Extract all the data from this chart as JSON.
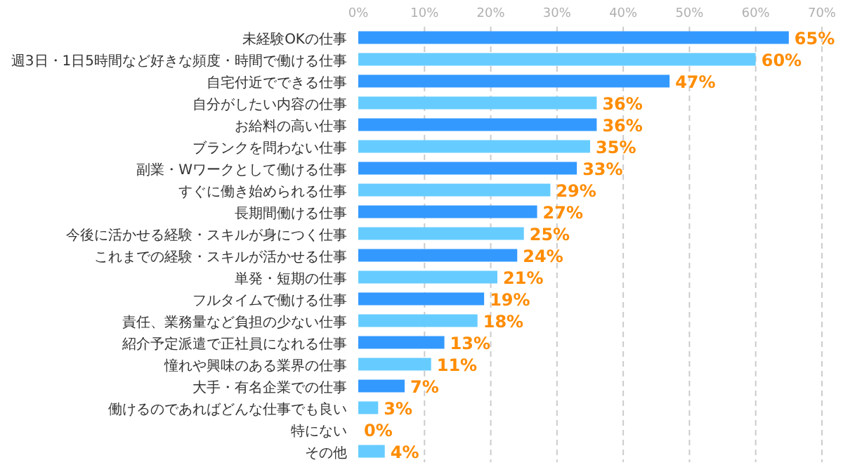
{
  "chart_data": {
    "type": "bar",
    "orientation": "horizontal",
    "categories": [
      "未経験OKの仕事",
      "週3日・1日5時間など好きな頻度・時間で働ける仕事",
      "自宅付近でできる仕事",
      "自分がしたい内容の仕事",
      "お給料の高い仕事",
      "ブランクを問わない仕事",
      "副業・Wワークとして働ける仕事",
      "すぐに働き始められる仕事",
      "長期間働ける仕事",
      "今後に活かせる経験・スキルが身につく仕事",
      "これまでの経験・スキルが活かせる仕事",
      "単発・短期の仕事",
      "フルタイムで働ける仕事",
      "責任、業務量など負担の少ない仕事",
      "紹介予定派遣で正社員になれる仕事",
      "憧れや興味のある業界の仕事",
      "大手・有名企業での仕事",
      "働けるのであればどんな仕事でも良い",
      "特にない",
      "その他"
    ],
    "values": [
      65,
      60,
      47,
      36,
      36,
      35,
      33,
      29,
      27,
      25,
      24,
      21,
      19,
      18,
      13,
      11,
      7,
      3,
      0,
      4
    ],
    "value_labels": [
      "65%",
      "60%",
      "47%",
      "36%",
      "36%",
      "35%",
      "33%",
      "29%",
      "27%",
      "25%",
      "24%",
      "21%",
      "19%",
      "18%",
      "13%",
      "11%",
      "7%",
      "3%",
      "0%",
      "4%"
    ],
    "colors": [
      "#3399ff",
      "#66ccff",
      "#3399ff",
      "#66ccff",
      "#3399ff",
      "#66ccff",
      "#3399ff",
      "#66ccff",
      "#3399ff",
      "#66ccff",
      "#3399ff",
      "#66ccff",
      "#3399ff",
      "#66ccff",
      "#3399ff",
      "#66ccff",
      "#3399ff",
      "#66ccff",
      "#3399ff",
      "#66ccff"
    ],
    "xlim": [
      0,
      70
    ],
    "xticks": [
      {
        "value": 0,
        "label": "0%"
      },
      {
        "value": 10,
        "label": "10%"
      },
      {
        "value": 20,
        "label": "20%"
      },
      {
        "value": 30,
        "label": "30%"
      },
      {
        "value": 40,
        "label": "40%"
      },
      {
        "value": 50,
        "label": "50%"
      },
      {
        "value": 60,
        "label": "60%"
      },
      {
        "value": 70,
        "label": "70%"
      }
    ],
    "grid": "x"
  }
}
